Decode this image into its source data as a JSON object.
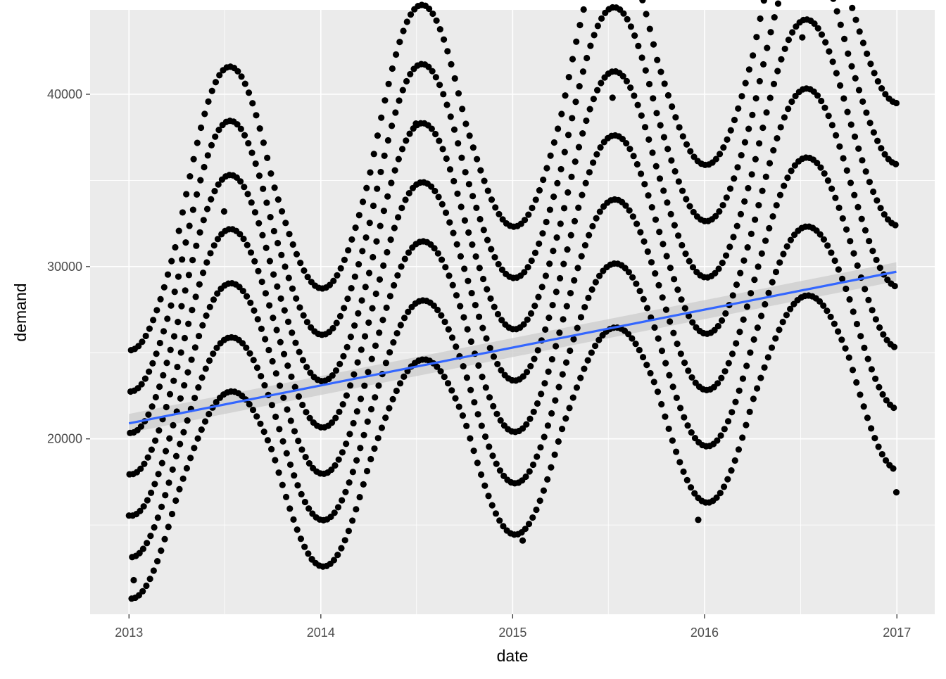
{
  "chart_data": {
    "type": "scatter",
    "xlabel": "date",
    "ylabel": "demand",
    "xlim": [
      "2012-10-19",
      "2017-03-14"
    ],
    "ylim": [
      9820,
      44900
    ],
    "x_ticks": [
      "2013",
      "2014",
      "2015",
      "2016",
      "2017"
    ],
    "y_ticks": [
      "20000",
      "30000",
      "40000"
    ],
    "grid": true,
    "legend": "none",
    "colors": {
      "panel": "#ebebeb",
      "grid": "#ffffff",
      "points": "#000000",
      "trend": "#3366ff",
      "band": "#cccccc"
    },
    "weekly_levels": {
      "description_of_series": "daily demand clusters into seven weekday levels",
      "date_range": [
        "2013-01-01",
        "2016-12-31"
      ]
    },
    "trend": {
      "method": "linear",
      "start": {
        "x": "2013-01-01",
        "y": 20900
      },
      "end": {
        "x": "2016-12-31",
        "y": 29700
      },
      "se_halfwidth": 550
    },
    "anchor_points": [
      {
        "x": "2013-01-10",
        "y": 11800
      },
      {
        "x": "2013-07-01",
        "y": 33200
      },
      {
        "x": "2013-12-15",
        "y": 13000
      },
      {
        "x": "2014-07-01",
        "y": 38300
      },
      {
        "x": "2015-01-20",
        "y": 14100
      },
      {
        "x": "2015-07-10",
        "y": 39800
      },
      {
        "x": "2015-12-20",
        "y": 15300
      },
      {
        "x": "2016-07-05",
        "y": 43300
      },
      {
        "x": "2016-12-31",
        "y": 16900
      }
    ]
  }
}
